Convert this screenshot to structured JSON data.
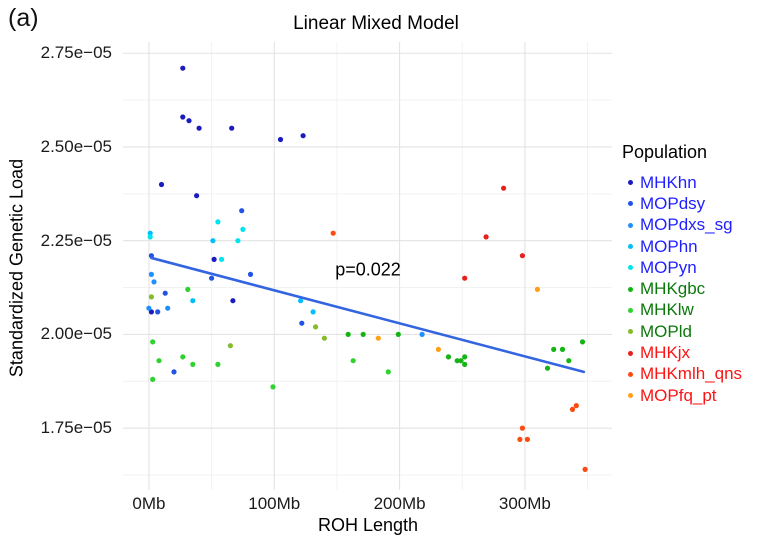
{
  "figure": {
    "panel_label": "(a)"
  },
  "chart_data": {
    "type": "scatter",
    "title": "Linear Mixed Model",
    "xlabel": "ROH Length",
    "ylabel": "Standardized Genetic Load",
    "x_unit": "Mb",
    "y_unit": "1e-05",
    "grid": "on",
    "xlim": [
      -20.7,
      369.5
    ],
    "ylim": [
      1.585,
      2.78
    ],
    "x_major_ticks": [
      {
        "value": 0,
        "label": "0Mb"
      },
      {
        "value": 100,
        "label": "100Mb"
      },
      {
        "value": 200,
        "label": "200Mb"
      },
      {
        "value": 300,
        "label": "300Mb"
      }
    ],
    "x_minor_ticks": [
      50,
      150,
      250,
      350
    ],
    "y_major_ticks": [
      {
        "value": 2.75,
        "label": "2.75e−05"
      },
      {
        "value": 2.5,
        "label": "2.50e−05"
      },
      {
        "value": 2.25,
        "label": "2.25e−05"
      },
      {
        "value": 2.0,
        "label": "2.00e−05"
      },
      {
        "value": 1.75,
        "label": "1.75e−05"
      }
    ],
    "y_minor_ticks": [
      2.625,
      2.375,
      2.125,
      1.875,
      1.625
    ],
    "annotation": {
      "text": "p=0.022",
      "x": 175,
      "y": 2.172
    },
    "trend_line": {
      "x1": 2,
      "y1": 2.204,
      "x2": 347,
      "y2": 1.9,
      "color": "#3465e0"
    },
    "point_radius": 2.6,
    "colors": {
      "grid_major": "#e3e3e3",
      "grid_minor": "#f2f2f2"
    },
    "series": [
      {
        "name": "MHKhn",
        "color": "#1c1cbe",
        "points": [
          [
            27,
            2.71
          ],
          [
            27,
            2.58
          ],
          [
            32,
            2.57
          ],
          [
            40,
            2.55
          ],
          [
            66,
            2.55
          ],
          [
            105,
            2.52
          ],
          [
            123,
            2.53
          ],
          [
            10,
            2.4
          ],
          [
            38,
            2.37
          ],
          [
            52,
            2.2
          ],
          [
            67,
            2.09
          ],
          [
            2,
            2.06
          ]
        ]
      },
      {
        "name": "MOPdsy",
        "color": "#2353e6",
        "points": [
          [
            74,
            2.33
          ],
          [
            2,
            2.21
          ],
          [
            81,
            2.16
          ],
          [
            50,
            2.15
          ],
          [
            13,
            2.11
          ],
          [
            7,
            2.06
          ],
          [
            122,
            2.03
          ],
          [
            20,
            1.9
          ]
        ]
      },
      {
        "name": "MOPdxs_sg",
        "color": "#1e90ff",
        "points": [
          [
            0,
            2.07
          ],
          [
            2,
            2.16
          ],
          [
            4,
            2.14
          ],
          [
            15,
            2.07
          ],
          [
            218,
            2.0
          ]
        ]
      },
      {
        "name": "MOPhn",
        "color": "#00bfff",
        "points": [
          [
            1,
            2.27
          ],
          [
            51,
            2.25
          ],
          [
            35,
            2.09
          ],
          [
            121,
            2.09
          ],
          [
            131,
            2.06
          ]
        ]
      },
      {
        "name": "MOPyn",
        "color": "#00e4ee",
        "points": [
          [
            1,
            2.26
          ],
          [
            55,
            2.3
          ],
          [
            75,
            2.28
          ],
          [
            71,
            2.25
          ],
          [
            58,
            2.2
          ]
        ]
      },
      {
        "name": "MHKgbc",
        "color": "#14b414",
        "points": [
          [
            159,
            2.0
          ],
          [
            171,
            2.0
          ],
          [
            199,
            2.0
          ],
          [
            239,
            1.94
          ],
          [
            246,
            1.93
          ],
          [
            249,
            1.93
          ],
          [
            252,
            1.94
          ],
          [
            252,
            1.92
          ],
          [
            318,
            1.91
          ],
          [
            323,
            1.96
          ],
          [
            330,
            1.96
          ],
          [
            335,
            1.93
          ],
          [
            346,
            1.98
          ]
        ]
      },
      {
        "name": "MHKlw",
        "color": "#2fd32f",
        "points": [
          [
            31,
            2.12
          ],
          [
            3,
            1.98
          ],
          [
            8,
            1.93
          ],
          [
            27,
            1.94
          ],
          [
            35,
            1.92
          ],
          [
            3,
            1.88
          ],
          [
            55,
            1.92
          ],
          [
            99,
            1.86
          ],
          [
            163,
            1.93
          ],
          [
            191,
            1.9
          ]
        ]
      },
      {
        "name": "MOPld",
        "color": "#86bb2a",
        "points": [
          [
            2,
            2.1
          ],
          [
            65,
            1.97
          ],
          [
            133,
            2.02
          ],
          [
            140,
            1.99
          ]
        ]
      },
      {
        "name": "MHKjx",
        "color": "#e8201c",
        "points": [
          [
            283,
            2.39
          ],
          [
            269,
            2.26
          ],
          [
            298,
            2.21
          ],
          [
            252,
            2.15
          ]
        ]
      },
      {
        "name": "MHKmlh_qns",
        "color": "#fc4a12",
        "points": [
          [
            147,
            2.27
          ],
          [
            341,
            1.81
          ],
          [
            338,
            1.8
          ],
          [
            298,
            1.75
          ],
          [
            296,
            1.72
          ],
          [
            302,
            1.72
          ],
          [
            348,
            1.64
          ]
        ]
      },
      {
        "name": "MOPfq_pt",
        "color": "#ffa019",
        "points": [
          [
            183,
            1.99
          ],
          [
            231,
            1.96
          ],
          [
            310,
            2.12
          ]
        ]
      }
    ],
    "legend": {
      "title": "Population",
      "position": "right",
      "items": [
        {
          "label": "MHKhn",
          "dot_color": "#1c1cbe",
          "text_color": "#1f1fff"
        },
        {
          "label": "MOPdsy",
          "dot_color": "#2353e6",
          "text_color": "#1f1fff"
        },
        {
          "label": "MOPdxs_sg",
          "dot_color": "#1e90ff",
          "text_color": "#1f1fff"
        },
        {
          "label": "MOPhn",
          "dot_color": "#00bfff",
          "text_color": "#1f1fff"
        },
        {
          "label": "MOPyn",
          "dot_color": "#00e4ee",
          "text_color": "#1f1fff"
        },
        {
          "label": "MHKgbc",
          "dot_color": "#14b414",
          "text_color": "#0c780c"
        },
        {
          "label": "MHKlw",
          "dot_color": "#2fd32f",
          "text_color": "#0c780c"
        },
        {
          "label": "MOPld",
          "dot_color": "#86bb2a",
          "text_color": "#0c780c"
        },
        {
          "label": "MHKjx",
          "dot_color": "#e8201c",
          "text_color": "#fc1414"
        },
        {
          "label": "MHKmlh_qns",
          "dot_color": "#fc4a12",
          "text_color": "#fc1414"
        },
        {
          "label": "MOPfq_pt",
          "dot_color": "#ffa019",
          "text_color": "#fc1414"
        }
      ]
    }
  }
}
